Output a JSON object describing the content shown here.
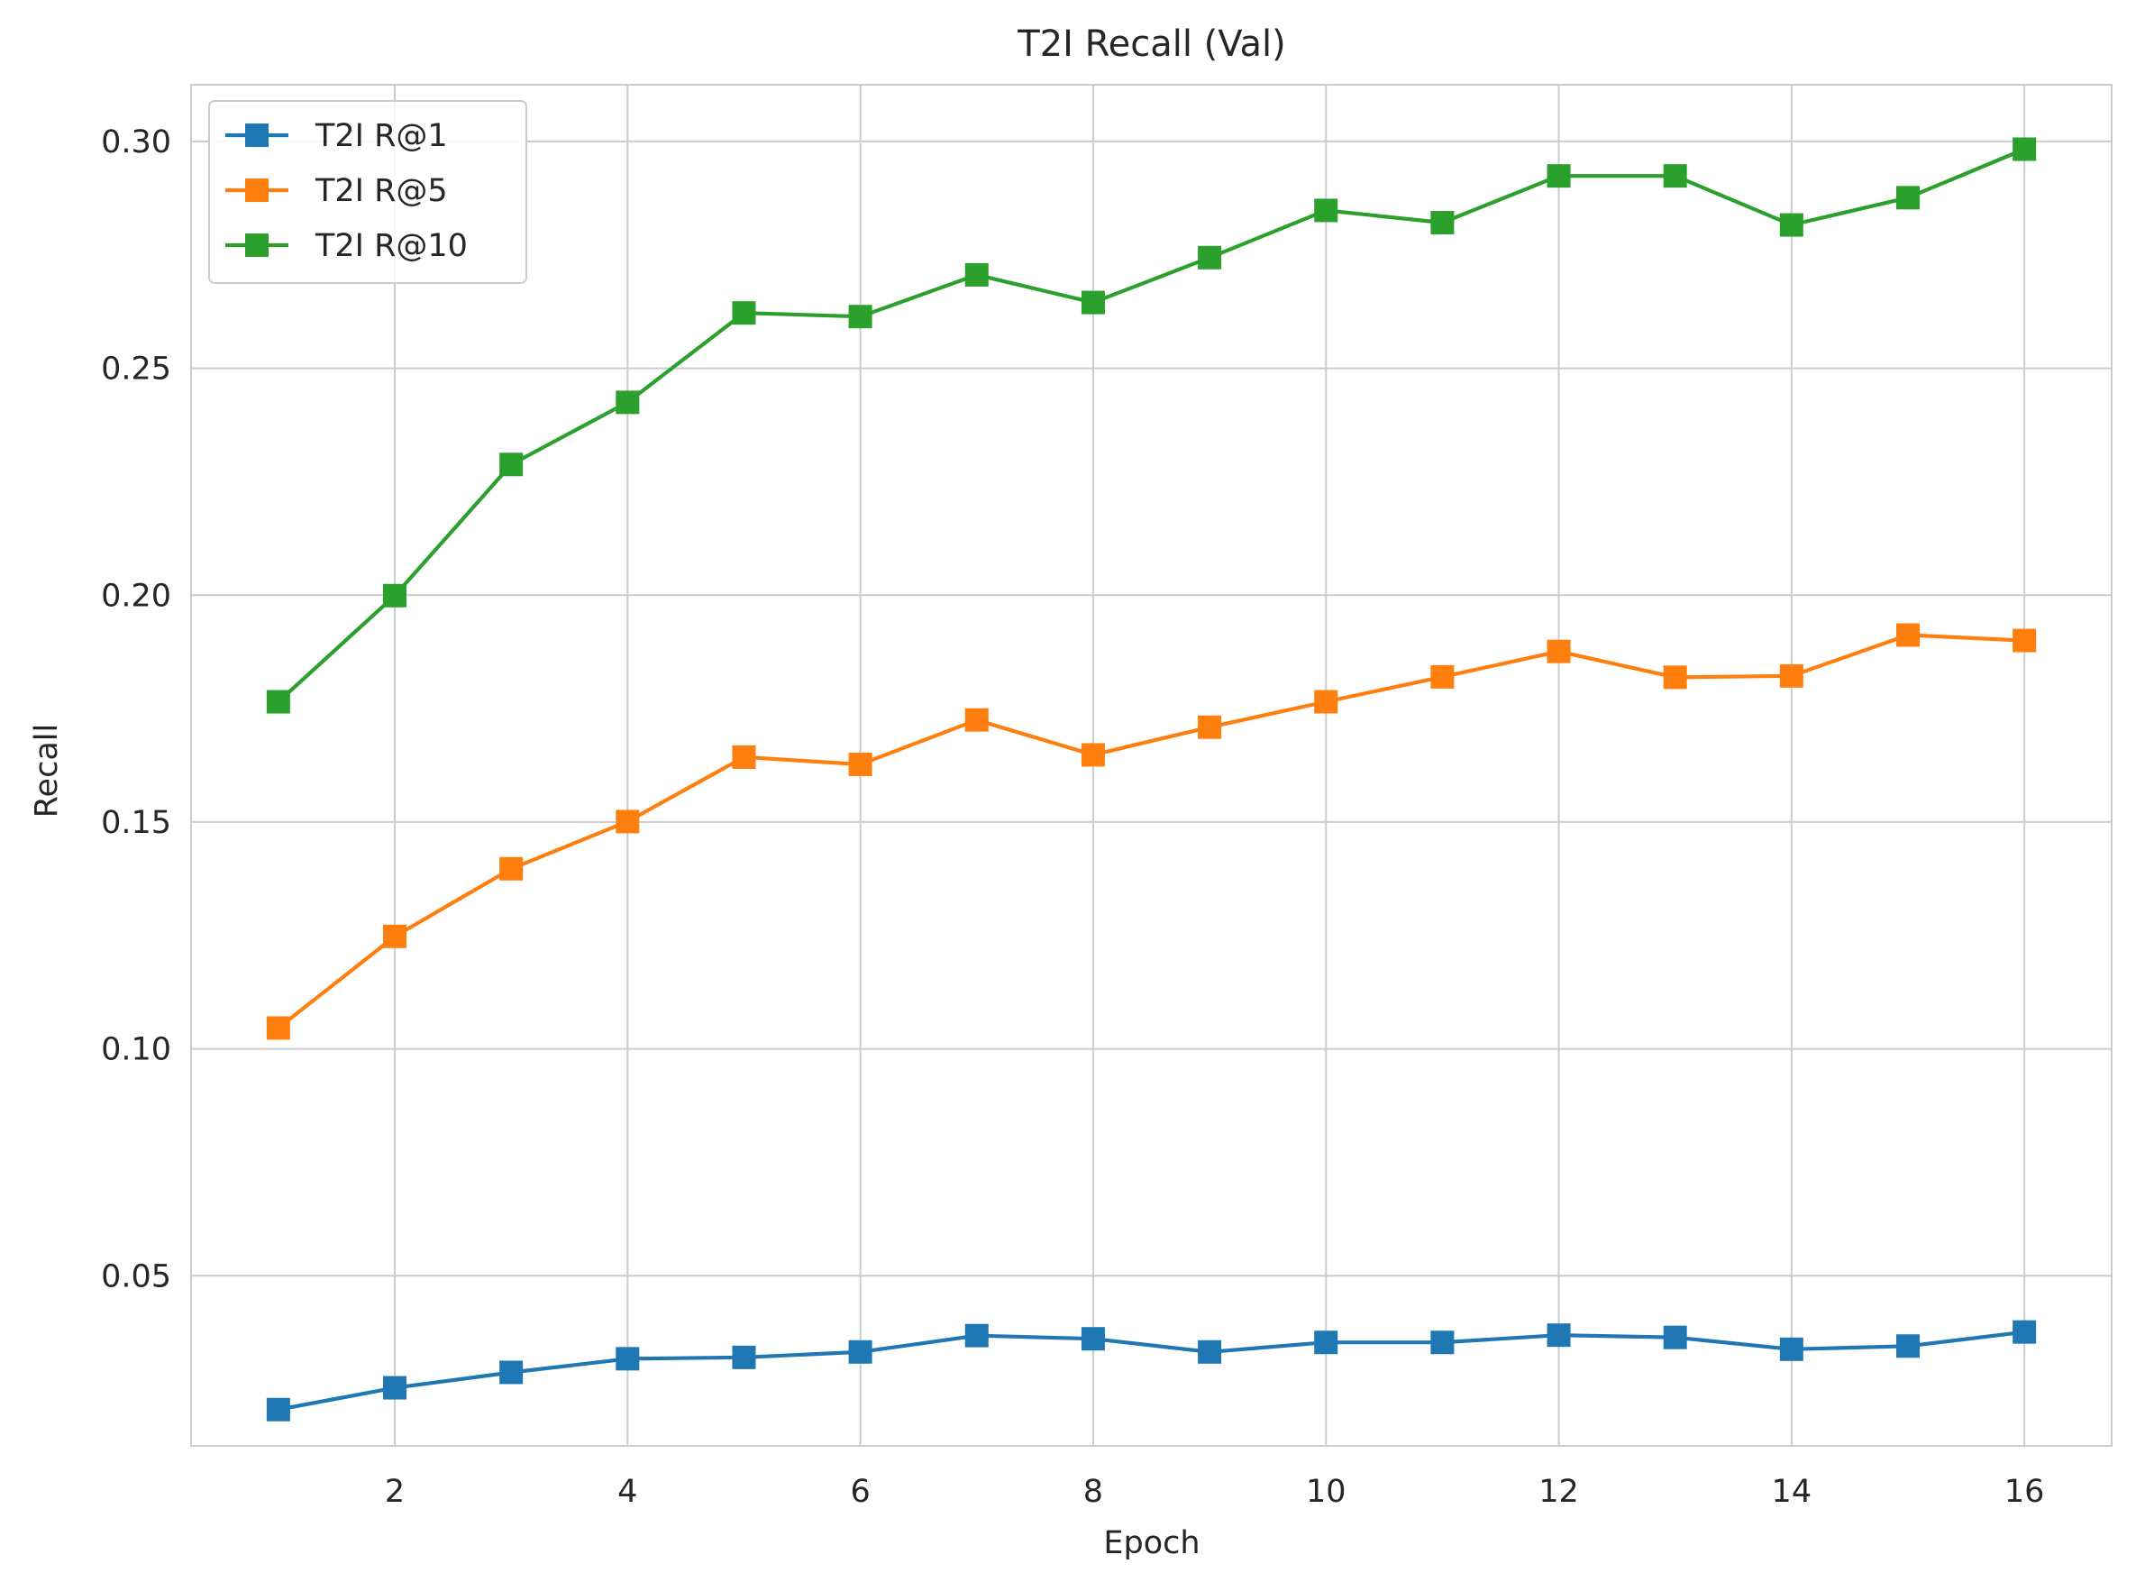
{
  "chart_data": {
    "type": "line",
    "title": "T2I Recall (Val)",
    "xlabel": "Epoch",
    "ylabel": "Recall",
    "x": [
      1,
      2,
      3,
      4,
      5,
      6,
      7,
      8,
      9,
      10,
      11,
      12,
      13,
      14,
      15,
      16
    ],
    "xlim": [
      0.25,
      16.75
    ],
    "ylim": [
      0.0125,
      0.3125
    ],
    "xticks": [
      2,
      4,
      6,
      8,
      10,
      12,
      14,
      16
    ],
    "xtick_labels": [
      "2",
      "4",
      "6",
      "8",
      "10",
      "12",
      "14",
      "16"
    ],
    "yticks": [
      0.05,
      0.1,
      0.15,
      0.2,
      0.25,
      0.3
    ],
    "ytick_labels": [
      "0.05",
      "0.10",
      "0.15",
      "0.20",
      "0.25",
      "0.30"
    ],
    "grid": true,
    "legend_position": "top-left",
    "marker": "square",
    "series": [
      {
        "name": "T2I R@1",
        "color": "#1f77b4",
        "values": [
          0.0205,
          0.0253,
          0.0287,
          0.0317,
          0.032,
          0.0332,
          0.0368,
          0.0361,
          0.0332,
          0.0353,
          0.0353,
          0.0369,
          0.0364,
          0.0338,
          0.0345,
          0.0376
        ]
      },
      {
        "name": "T2I R@5",
        "color": "#ff7f0e",
        "values": [
          0.1046,
          0.1248,
          0.1397,
          0.1501,
          0.1643,
          0.1627,
          0.1725,
          0.1648,
          0.1709,
          0.1765,
          0.182,
          0.1876,
          0.1819,
          0.1822,
          0.1912,
          0.19
        ]
      },
      {
        "name": "T2I R@10",
        "color": "#2ca02c",
        "values": [
          0.1765,
          0.1999,
          0.2288,
          0.2425,
          0.2622,
          0.2614,
          0.2706,
          0.2645,
          0.2744,
          0.2848,
          0.2821,
          0.2924,
          0.2924,
          0.2816,
          0.2876,
          0.2983
        ]
      }
    ]
  }
}
